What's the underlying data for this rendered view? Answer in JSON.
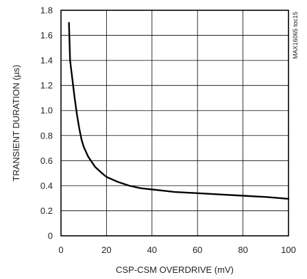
{
  "chart_data": {
    "type": "line",
    "xlabel": "CSP-CSM OVERDRIVE (mV)",
    "ylabel": "TRANSIENT DURATION (µs)",
    "xlim": [
      0,
      100
    ],
    "ylim": [
      0,
      1.8
    ],
    "x_ticks": [
      "0",
      "20",
      "40",
      "60",
      "80",
      "100"
    ],
    "y_ticks": [
      "0",
      "0.2",
      "0.4",
      "0.6",
      "0.8",
      "1.0",
      "1.2",
      "1.4",
      "1.6",
      "1.8"
    ],
    "grid": true,
    "annotation": "MAX16065 toc15",
    "series": [
      {
        "x": [
          3.5,
          4,
          5,
          6,
          7,
          8,
          9,
          10,
          12,
          15,
          18,
          20,
          25,
          30,
          35,
          40,
          45,
          50,
          55,
          60,
          70,
          80,
          90,
          100
        ],
        "y": [
          1.7,
          1.4,
          1.25,
          1.1,
          0.97,
          0.86,
          0.77,
          0.71,
          0.63,
          0.55,
          0.5,
          0.47,
          0.43,
          0.4,
          0.38,
          0.37,
          0.36,
          0.35,
          0.345,
          0.34,
          0.33,
          0.32,
          0.31,
          0.295
        ]
      }
    ]
  }
}
